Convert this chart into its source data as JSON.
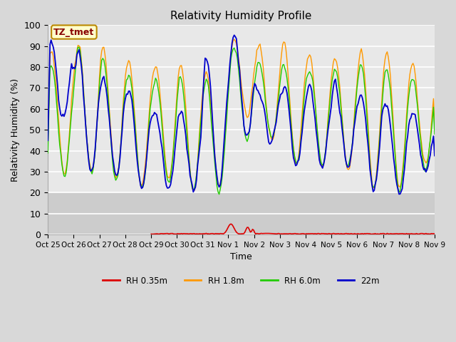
{
  "title": "Relativity Humidity Profile",
  "xlabel": "Time",
  "ylabel": "Relativity Humidity (%)",
  "ylim": [
    0,
    100
  ],
  "annotation_text": "TZ_tmet",
  "annotation_bg": "#ffffcc",
  "annotation_border": "#bb8800",
  "annotation_text_color": "#880000",
  "colors": {
    "RH 0.35m": "#dd0000",
    "RH 1.8m": "#ff9900",
    "RH 6.0m": "#22cc00",
    "22m": "#0000cc"
  },
  "background_color": "#d8d8d8",
  "plot_bg": "#e8e8e8",
  "lower_band_bg": "#cccccc",
  "grid_color": "#ffffff",
  "x_tick_labels": [
    "Oct 25",
    "Oct 26",
    "Oct 27",
    "Oct 28",
    "Oct 29",
    "Oct 30",
    "Oct 31",
    "Nov 1",
    "Nov 2",
    "Nov 3",
    "Nov 4",
    "Nov 5",
    "Nov 6",
    "Nov 7",
    "Nov 8",
    "Nov 9"
  ],
  "x_positions": [
    0,
    1,
    2,
    3,
    4,
    5,
    6,
    7,
    8,
    9,
    10,
    11,
    12,
    13,
    14,
    15
  ],
  "shade_below": 20
}
